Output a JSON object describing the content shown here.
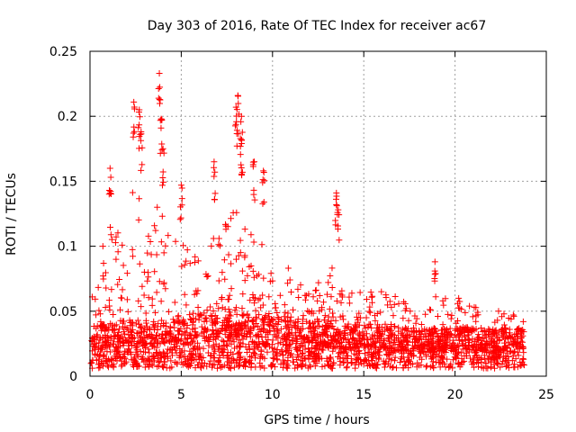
{
  "chart_data": {
    "type": "scatter",
    "title": "Day 303 of 2016, Rate Of TEC Index for receiver ac67",
    "xlabel": "GPS time / hours",
    "ylabel": "ROTI / TECUs",
    "xlim": [
      0,
      25
    ],
    "ylim": [
      0,
      0.25
    ],
    "xticks": [
      0,
      5,
      10,
      15,
      20,
      25
    ],
    "yticks": [
      0,
      0.05,
      0.1,
      0.15,
      0.2,
      0.25
    ],
    "xtick_labels": [
      "0",
      "5",
      "10",
      "15",
      "20",
      "25"
    ],
    "ytick_labels": [
      "0",
      "0.05",
      "0.1",
      "0.15",
      "0.2",
      "0.25"
    ],
    "grid": true,
    "marker": "+",
    "color": "#ff0000",
    "series": [
      {
        "name": "ROTI",
        "approx_baseline": [
          {
            "x": 0,
            "y": 0.02
          },
          {
            "x": 2,
            "y": 0.025
          },
          {
            "x": 4,
            "y": 0.025
          },
          {
            "x": 6,
            "y": 0.03
          },
          {
            "x": 8,
            "y": 0.03
          },
          {
            "x": 10,
            "y": 0.03
          },
          {
            "x": 12,
            "y": 0.025
          },
          {
            "x": 14,
            "y": 0.022
          },
          {
            "x": 16,
            "y": 0.022
          },
          {
            "x": 18,
            "y": 0.018
          },
          {
            "x": 20,
            "y": 0.02
          },
          {
            "x": 22,
            "y": 0.02
          },
          {
            "x": 23.8,
            "y": 0.018
          }
        ],
        "notable_points": [
          {
            "x": 1.1,
            "y": 0.16
          },
          {
            "x": 2.4,
            "y": 0.211
          },
          {
            "x": 2.7,
            "y": 0.205
          },
          {
            "x": 2.8,
            "y": 0.188
          },
          {
            "x": 3.8,
            "y": 0.233
          },
          {
            "x": 3.9,
            "y": 0.198
          },
          {
            "x": 4.0,
            "y": 0.175
          },
          {
            "x": 5.0,
            "y": 0.147
          },
          {
            "x": 6.8,
            "y": 0.165
          },
          {
            "x": 8.0,
            "y": 0.207
          },
          {
            "x": 8.1,
            "y": 0.216
          },
          {
            "x": 8.3,
            "y": 0.182
          },
          {
            "x": 8.3,
            "y": 0.2
          },
          {
            "x": 9.0,
            "y": 0.165
          },
          {
            "x": 9.5,
            "y": 0.158
          },
          {
            "x": 13.5,
            "y": 0.141
          },
          {
            "x": 13.6,
            "y": 0.128
          },
          {
            "x": 18.9,
            "y": 0.088
          },
          {
            "x": 20.2,
            "y": 0.06
          }
        ]
      }
    ]
  }
}
